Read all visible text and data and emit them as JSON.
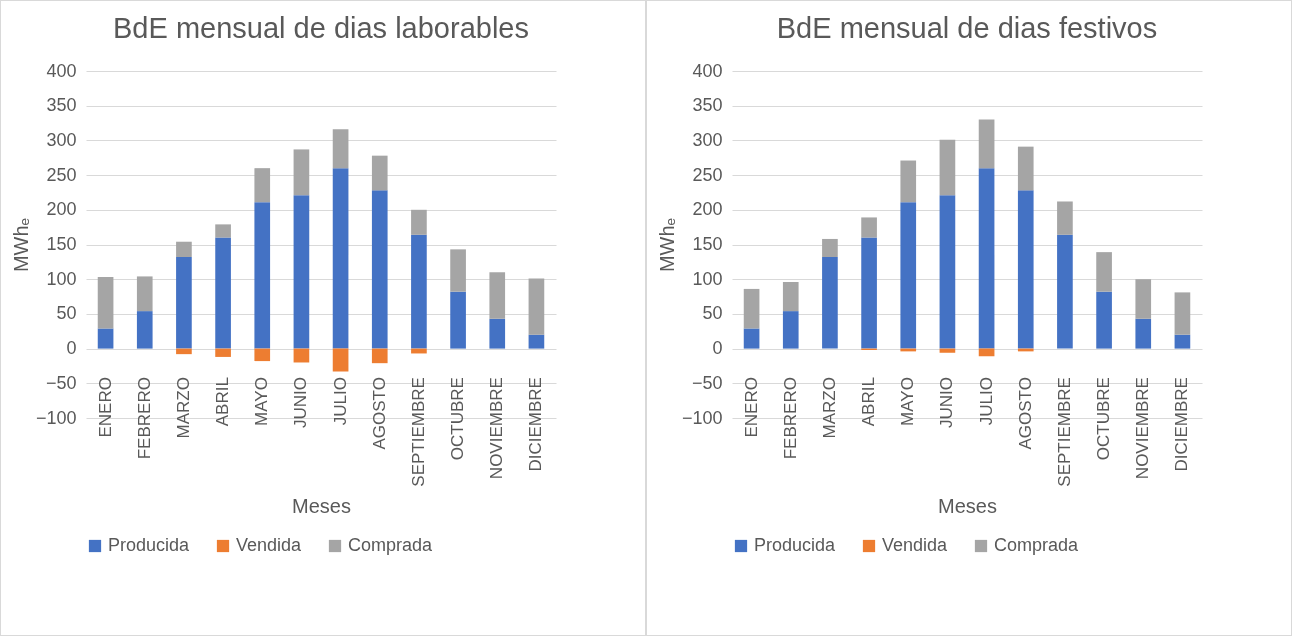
{
  "chart_data": [
    {
      "type": "bar",
      "title": "BdE mensual de dias laborables",
      "xlabel": "Meses",
      "ylabel": "MWhₑ",
      "stacked": true,
      "categories": [
        "ENERO",
        "FEBRERO",
        "MARZO",
        "ABRIL",
        "MAYO",
        "JUNIO",
        "JULIO",
        "AGOSTO",
        "SEPTIEMBRE",
        "OCTUBRE",
        "NOVIEMBRE",
        "DICIEMBRE"
      ],
      "series": [
        {
          "name": "Producida",
          "color": "#4472c4",
          "values": [
            29,
            54,
            132,
            160,
            211,
            221,
            260,
            228,
            164,
            82,
            43,
            20
          ]
        },
        {
          "name": "Vendida",
          "color": "#ed7d31",
          "values": [
            0,
            0,
            -8,
            -12,
            -18,
            -20,
            -33,
            -21,
            -7,
            0,
            0,
            0
          ]
        },
        {
          "name": "Comprada",
          "color": "#a5a5a5",
          "values": [
            74,
            50,
            22,
            19,
            49,
            66,
            56,
            50,
            36,
            61,
            67,
            81
          ]
        }
      ],
      "ylim": [
        -100,
        400
      ],
      "yticks": [
        -100,
        -50,
        0,
        50,
        100,
        150,
        200,
        250,
        300,
        350,
        400
      ],
      "grid": "y",
      "legend": "bottom"
    },
    {
      "type": "bar",
      "title": "BdE mensual de dias festivos",
      "xlabel": "Meses",
      "ylabel": "MWhₑ",
      "stacked": true,
      "categories": [
        "ENERO",
        "FEBRERO",
        "MARZO",
        "ABRIL",
        "MAYO",
        "JUNIO",
        "JULIO",
        "AGOSTO",
        "SEPTIEMBRE",
        "OCTUBRE",
        "NOVIEMBRE",
        "DICIEMBRE"
      ],
      "series": [
        {
          "name": "Producida",
          "color": "#4472c4",
          "values": [
            29,
            54,
            132,
            160,
            211,
            221,
            260,
            228,
            164,
            82,
            43,
            20
          ]
        },
        {
          "name": "Vendida",
          "color": "#ed7d31",
          "values": [
            0,
            0,
            null,
            -2,
            -4,
            -6,
            -11,
            -4,
            0,
            0,
            0,
            0
          ]
        },
        {
          "name": "Comprada",
          "color": "#a5a5a5",
          "values": [
            57,
            42,
            26,
            29,
            60,
            80,
            70,
            63,
            48,
            57,
            57,
            61
          ]
        }
      ],
      "ylim": [
        -100,
        400
      ],
      "yticks": [
        -100,
        -50,
        0,
        50,
        100,
        150,
        200,
        250,
        300,
        350,
        400
      ],
      "grid": "y",
      "legend": "bottom"
    }
  ]
}
